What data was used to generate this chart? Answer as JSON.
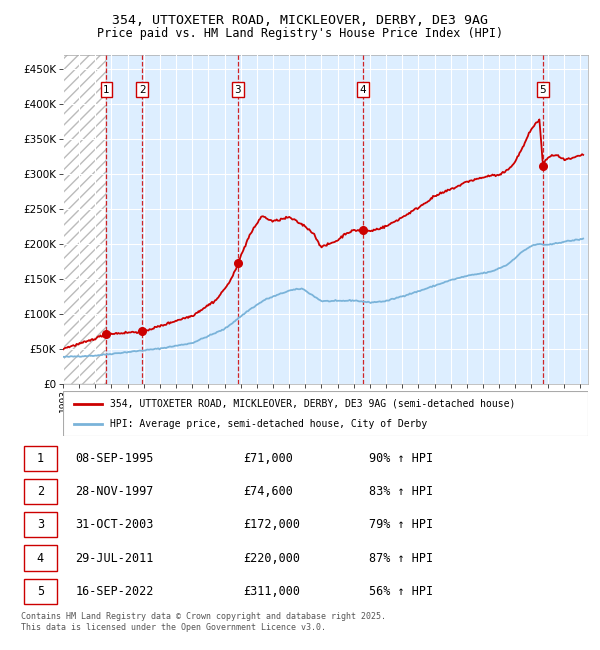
{
  "title_line1": "354, UTTOXETER ROAD, MICKLEOVER, DERBY, DE3 9AG",
  "title_line2": "Price paid vs. HM Land Registry's House Price Index (HPI)",
  "xlim_start": 1993.0,
  "xlim_end": 2025.5,
  "ylim_min": 0,
  "ylim_max": 470000,
  "yticks": [
    0,
    50000,
    100000,
    150000,
    200000,
    250000,
    300000,
    350000,
    400000,
    450000
  ],
  "ytick_labels": [
    "£0",
    "£50K",
    "£100K",
    "£150K",
    "£200K",
    "£250K",
    "£300K",
    "£350K",
    "£400K",
    "£450K"
  ],
  "xtick_years": [
    1993,
    1994,
    1995,
    1996,
    1997,
    1998,
    1999,
    2000,
    2001,
    2002,
    2003,
    2004,
    2005,
    2006,
    2007,
    2008,
    2009,
    2010,
    2011,
    2012,
    2013,
    2014,
    2015,
    2016,
    2017,
    2018,
    2019,
    2020,
    2021,
    2022,
    2023,
    2024,
    2025
  ],
  "sale_dates_decimal": [
    1995.69,
    1997.91,
    2003.83,
    2011.58,
    2022.71
  ],
  "sale_prices": [
    71000,
    74600,
    172000,
    220000,
    311000
  ],
  "sale_labels": [
    "1",
    "2",
    "3",
    "4",
    "5"
  ],
  "legend_line1": "354, UTTOXETER ROAD, MICKLEOVER, DERBY, DE3 9AG (semi-detached house)",
  "legend_line2": "HPI: Average price, semi-detached house, City of Derby",
  "table_rows": [
    [
      "1",
      "08-SEP-1995",
      "£71,000",
      "90% ↑ HPI"
    ],
    [
      "2",
      "28-NOV-1997",
      "£74,600",
      "83% ↑ HPI"
    ],
    [
      "3",
      "31-OCT-2003",
      "£172,000",
      "79% ↑ HPI"
    ],
    [
      "4",
      "29-JUL-2011",
      "£220,000",
      "87% ↑ HPI"
    ],
    [
      "5",
      "16-SEP-2022",
      "£311,000",
      "56% ↑ HPI"
    ]
  ],
  "footnote": "Contains HM Land Registry data © Crown copyright and database right 2025.\nThis data is licensed under the Open Government Licence v3.0.",
  "hpi_color": "#7ab3d9",
  "price_color": "#cc0000",
  "bg_color": "#ddeeff",
  "grid_color": "#ffffff",
  "vline_color": "#cc0000",
  "hpi_anchors_t": [
    1993.0,
    1995.0,
    1997.0,
    1999.0,
    2001.0,
    2003.0,
    2004.5,
    2005.5,
    2007.0,
    2007.8,
    2009.0,
    2010.0,
    2011.0,
    2012.0,
    2013.0,
    2014.0,
    2015.0,
    2016.0,
    2017.0,
    2018.0,
    2019.0,
    2019.5,
    2020.5,
    2021.5,
    2022.0,
    2022.5,
    2023.0,
    2024.0,
    2025.2
  ],
  "hpi_anchors_v": [
    38000,
    40000,
    45000,
    50000,
    58000,
    78000,
    105000,
    120000,
    133000,
    136000,
    118000,
    118000,
    119000,
    116000,
    118000,
    125000,
    132000,
    140000,
    148000,
    154000,
    158000,
    160000,
    170000,
    190000,
    197000,
    200000,
    198000,
    203000,
    207000
  ],
  "prop_anchors_t": [
    1993.0,
    1994.5,
    1995.69,
    1996.5,
    1997.91,
    1999.0,
    2000.0,
    2001.0,
    2002.5,
    2003.4,
    2003.83,
    2004.5,
    2005.3,
    2006.0,
    2007.0,
    2008.0,
    2008.5,
    2009.0,
    2009.5,
    2010.0,
    2010.5,
    2011.0,
    2011.58,
    2012.0,
    2013.0,
    2014.0,
    2015.0,
    2016.0,
    2017.0,
    2017.5,
    2018.0,
    2018.5,
    2019.0,
    2019.5,
    2020.0,
    2020.5,
    2021.0,
    2021.5,
    2022.0,
    2022.5,
    2022.71,
    2022.85,
    2023.0,
    2023.5,
    2024.0,
    2024.5,
    2025.0,
    2025.2
  ],
  "prop_anchors_v": [
    50000,
    60000,
    71000,
    72000,
    74600,
    82000,
    90000,
    97000,
    120000,
    148000,
    172000,
    210000,
    240000,
    232000,
    238000,
    225000,
    215000,
    195000,
    200000,
    205000,
    215000,
    219000,
    220000,
    218000,
    225000,
    238000,
    252000,
    268000,
    278000,
    283000,
    289000,
    292000,
    295000,
    298000,
    298000,
    305000,
    318000,
    340000,
    365000,
    378000,
    311000,
    318000,
    323000,
    328000,
    320000,
    322000,
    326000,
    328000
  ]
}
